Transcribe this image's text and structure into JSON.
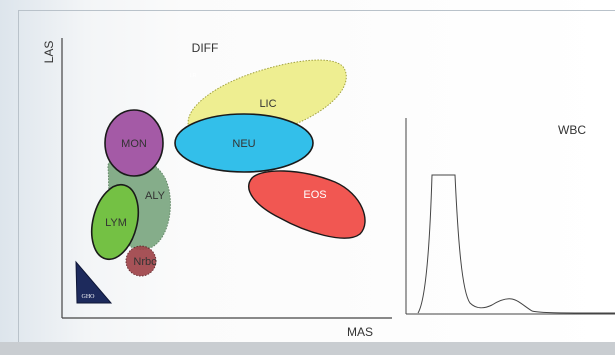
{
  "scatter": {
    "title": "DIFF",
    "y_axis_label": "LAS",
    "x_axis_label": "MAS",
    "clusters": [
      {
        "name": "LIC",
        "color": "#eeee8c"
      },
      {
        "name": "NEU",
        "color": "#33bfea"
      },
      {
        "name": "MON",
        "color": "#a45aa6"
      },
      {
        "name": "ALY",
        "color": "#79a57e"
      },
      {
        "name": "LYM",
        "color": "#74c144"
      },
      {
        "name": "EOS",
        "color": "#f15752"
      },
      {
        "name": "Nrbc",
        "color": "#a0444a"
      },
      {
        "name": "GHO",
        "color": "#1d2a5c"
      }
    ],
    "faint_label": "LR"
  },
  "histogram": {
    "title": "WBC"
  }
}
